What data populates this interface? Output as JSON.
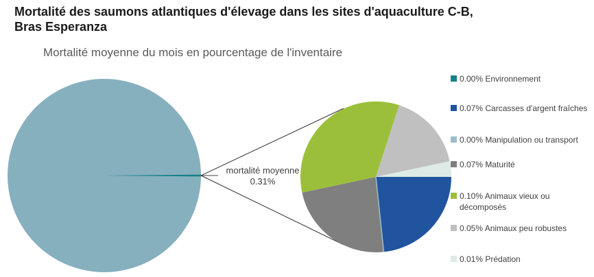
{
  "header": {
    "title_line1": "Mortalité des saumons atlantiques d'élevage dans les sites d'aquaculture C-B,",
    "title_line2": "Bras Esperanza",
    "subtitle": "Mortalité moyenne du mois en pourcentage de l'inventaire"
  },
  "chart_data": {
    "type": "pie-of-pie",
    "title": "Mortalité des saumons atlantiques d'élevage dans les sites d'aquaculture C-B, Bras Esperanza",
    "subtitle": "Mortalité moyenne du mois en pourcentage de l'inventaire",
    "legend_position": "right",
    "start_angle_deg": 90,
    "callout": {
      "label": "mortalité moyenne",
      "value": "0.31%"
    },
    "main_pie": {
      "mortality_pct": 0.31,
      "rest_pct": 99.69,
      "body_color": "#87B0BE",
      "sliver_color": "#17818A"
    },
    "breakdown": [
      {
        "pct_label": "0.00%",
        "label": "Environnement",
        "value": 0.0,
        "color": "#17818A",
        "hairline": false
      },
      {
        "pct_label": "0.07%",
        "label": "Carcasses d'argent fraîches",
        "value": 0.07,
        "color": "#21549F",
        "hairline": false
      },
      {
        "pct_label": "0.00%",
        "label": "Manipulation ou transport",
        "value": 0.0,
        "color": "#9DBFCB",
        "hairline": true
      },
      {
        "pct_label": "0.07%",
        "label": "Maturité",
        "value": 0.07,
        "color": "#7F7F7F",
        "hairline": false
      },
      {
        "pct_label": "0.10%",
        "label": "Animaux vieux ou décomposés",
        "value": 0.1,
        "color": "#9CBF3B",
        "hairline": false
      },
      {
        "pct_label": "0.05%",
        "label": "Animaux peu robustes",
        "value": 0.05,
        "color": "#C0C0C0",
        "hairline": false
      },
      {
        "pct_label": "0.01%",
        "label": "Prédation",
        "value": 0.01,
        "color": "#DEEAE6",
        "hairline": false
      }
    ]
  }
}
